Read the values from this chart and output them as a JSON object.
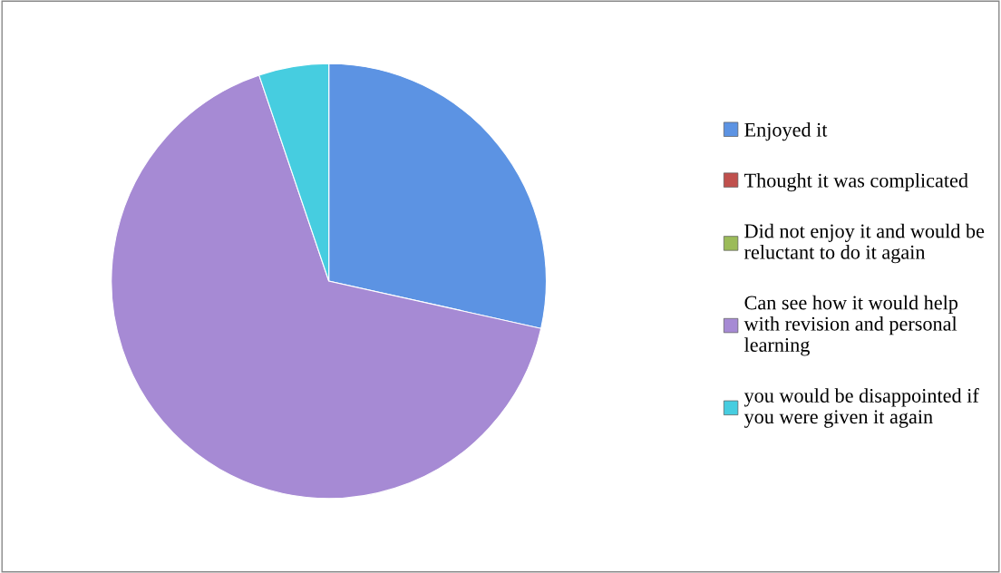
{
  "chart_data": {
    "type": "pie",
    "categories": [
      "Enjoyed it",
      "Thought it was complicated",
      "Did not enjoy it and would be reluctant to do it again",
      "Can see how it would help with revision and personal learning",
      "you would be disappointed if you were given it again"
    ],
    "values": [
      28.5,
      0,
      0,
      66.3,
      5.2
    ],
    "colors": [
      "#5c93e3",
      "#c0504d",
      "#9bbb59",
      "#a68ad4",
      "#46cde0"
    ],
    "legend": "right"
  }
}
